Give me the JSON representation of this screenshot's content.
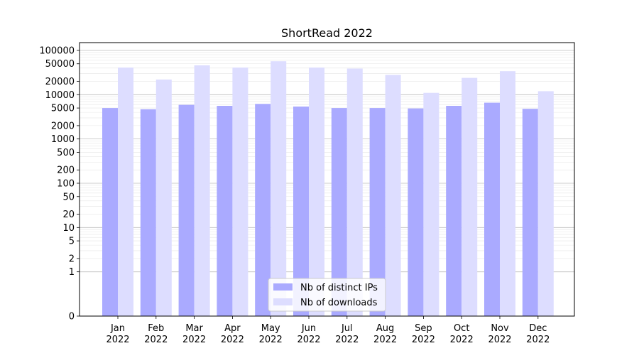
{
  "chart_data": {
    "type": "bar",
    "title": "ShortRead 2022",
    "xlabel": "",
    "ylabel": "",
    "y_scale": "symlog",
    "ylim": [
      0,
      150000
    ],
    "grid": true,
    "legend_position": "bottom-center",
    "categories": [
      {
        "month": "Jan",
        "year": "2022"
      },
      {
        "month": "Feb",
        "year": "2022"
      },
      {
        "month": "Mar",
        "year": "2022"
      },
      {
        "month": "Apr",
        "year": "2022"
      },
      {
        "month": "May",
        "year": "2022"
      },
      {
        "month": "Jun",
        "year": "2022"
      },
      {
        "month": "Jul",
        "year": "2022"
      },
      {
        "month": "Aug",
        "year": "2022"
      },
      {
        "month": "Sep",
        "year": "2022"
      },
      {
        "month": "Oct",
        "year": "2022"
      },
      {
        "month": "Nov",
        "year": "2022"
      },
      {
        "month": "Dec",
        "year": "2022"
      }
    ],
    "series": [
      {
        "name": "Nb of distinct IPs",
        "color": "#aaaaff",
        "values": [
          5000,
          4700,
          5900,
          5600,
          6200,
          5400,
          5000,
          5000,
          4900,
          5600,
          6600,
          4800
        ]
      },
      {
        "name": "Nb of downloads",
        "color": "#ddddff",
        "values": [
          41000,
          22000,
          46000,
          41000,
          57000,
          41000,
          39000,
          28000,
          11000,
          24000,
          34000,
          12000
        ]
      }
    ],
    "y_ticks": [
      {
        "value": 0,
        "label": "0"
      },
      {
        "value": 1,
        "label": "1"
      },
      {
        "value": 2,
        "label": "2"
      },
      {
        "value": 5,
        "label": "5"
      },
      {
        "value": 10,
        "label": "10"
      },
      {
        "value": 20,
        "label": "20"
      },
      {
        "value": 50,
        "label": "50"
      },
      {
        "value": 100,
        "label": "100"
      },
      {
        "value": 200,
        "label": "200"
      },
      {
        "value": 500,
        "label": "500"
      },
      {
        "value": 1000,
        "label": "1000"
      },
      {
        "value": 2000,
        "label": "2000"
      },
      {
        "value": 5000,
        "label": "5000"
      },
      {
        "value": 10000,
        "label": "10000"
      },
      {
        "value": 20000,
        "label": "20000"
      },
      {
        "value": 50000,
        "label": "50000"
      },
      {
        "value": 100000,
        "label": "100000"
      }
    ]
  }
}
